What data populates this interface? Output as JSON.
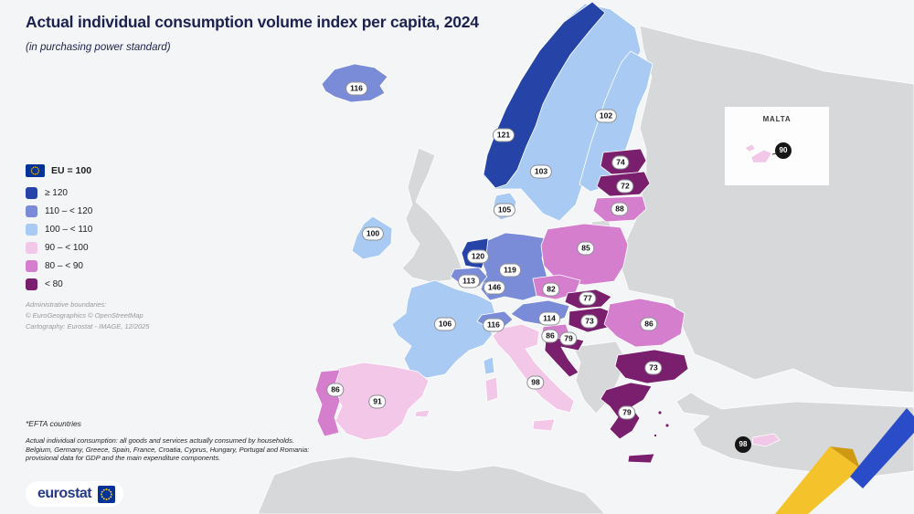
{
  "title": "Actual individual consumption volume index per capita, 2024",
  "subtitle": "(in purchasing power standard)",
  "legend": {
    "eu_label": "EU = 100",
    "classes": [
      {
        "label": "≥ 120",
        "color": "#2644A7"
      },
      {
        "label": "110 – < 120",
        "color": "#7A8CD8"
      },
      {
        "label": "100 – < 110",
        "color": "#A9CAF2"
      },
      {
        "label": "90 – < 100",
        "color": "#F2C7E7"
      },
      {
        "label": "80 – < 90",
        "color": "#D57ECE"
      },
      {
        "label": "< 80",
        "color": "#791F6D"
      }
    ],
    "admin_lines": [
      "Administrative boundaries:",
      "© EuroGeographics © OpenStreetMap",
      "Cartography: Eurostat - IMAGE, 12/2025"
    ]
  },
  "footnotes": [
    "*EFTA countries",
    "Actual individual consumption: all goods and services actually consumed by households.",
    "Belgium, Germany, Greece, Spain, France, Croatia, Cyprus, Hungary, Portugal and Romania:",
    "provisional data for GDP and the main expenditure components."
  ],
  "inset": {
    "label": "MALTA",
    "value": "90"
  },
  "logo": {
    "text": "eurostat"
  },
  "colors": {
    "sea": "#F4F5F6",
    "no_data_land": "#D7D8D9",
    "badge_dark": "#161616",
    "title_text": "#1C2150",
    "ribbon_yellow": "#F4C32B",
    "ribbon_blue": "#2A4CC9",
    "eu_flag_blue": "#003399",
    "eu_flag_stars": "#FFCC00"
  },
  "map": {
    "countries": [
      {
        "id": "norway",
        "name": "Norway",
        "value": 121,
        "band": 0,
        "badge": [
          551,
          148
        ]
      },
      {
        "id": "sweden",
        "name": "Sweden",
        "value": 103,
        "band": 2,
        "badge": [
          592,
          188
        ]
      },
      {
        "id": "finland",
        "name": "Finland",
        "value": 102,
        "band": 2,
        "badge": [
          663,
          127
        ]
      },
      {
        "id": "iceland",
        "name": "Iceland",
        "value": 116,
        "band": 1,
        "badge": [
          390,
          97
        ]
      },
      {
        "id": "denmark",
        "name": "Denmark",
        "value": 105,
        "band": 2,
        "badge": [
          552,
          230
        ]
      },
      {
        "id": "estonia",
        "name": "Estonia",
        "value": 74,
        "band": 5,
        "badge": [
          679,
          178
        ]
      },
      {
        "id": "latvia",
        "name": "Latvia",
        "value": 72,
        "band": 5,
        "badge": [
          684,
          204
        ]
      },
      {
        "id": "lithuania",
        "name": "Lithuania",
        "value": 88,
        "band": 4,
        "badge": [
          678,
          229
        ]
      },
      {
        "id": "ireland",
        "name": "Ireland",
        "value": 100,
        "band": 2,
        "badge": [
          408,
          256
        ]
      },
      {
        "id": "netherlands",
        "name": "Netherlands",
        "value": 120,
        "band": 0,
        "badge": [
          523,
          281
        ]
      },
      {
        "id": "belgium",
        "name": "Belgium",
        "value": 113,
        "band": 1,
        "badge": [
          513,
          308
        ]
      },
      {
        "id": "luxembourg",
        "name": "Luxembourg",
        "value": 146,
        "band": 0,
        "badge": [
          541,
          315
        ]
      },
      {
        "id": "germany",
        "name": "Germany",
        "value": 119,
        "band": 1,
        "badge": [
          558,
          296
        ]
      },
      {
        "id": "poland",
        "name": "Poland",
        "value": 85,
        "band": 4,
        "badge": [
          641,
          272
        ]
      },
      {
        "id": "czechia",
        "name": "Czechia",
        "value": 82,
        "band": 4,
        "badge": [
          603,
          317
        ]
      },
      {
        "id": "slovakia",
        "name": "Slovakia",
        "value": 77,
        "band": 5,
        "badge": [
          643,
          327
        ]
      },
      {
        "id": "austria",
        "name": "Austria",
        "value": 114,
        "band": 1,
        "badge": [
          601,
          349
        ]
      },
      {
        "id": "switzerland",
        "name": "Switzerland",
        "value": 116,
        "band": 1,
        "badge": [
          540,
          356
        ]
      },
      {
        "id": "hungary",
        "name": "Hungary",
        "value": 73,
        "band": 5,
        "badge": [
          645,
          352
        ]
      },
      {
        "id": "slovenia",
        "name": "Slovenia",
        "value": 86,
        "band": 4,
        "badge": [
          602,
          368
        ]
      },
      {
        "id": "croatia",
        "name": "Croatia",
        "value": 79,
        "band": 5,
        "badge": [
          622,
          371
        ]
      },
      {
        "id": "romania",
        "name": "Romania",
        "value": 86,
        "band": 4,
        "badge": [
          710,
          355
        ]
      },
      {
        "id": "bulgaria",
        "name": "Bulgaria",
        "value": 73,
        "band": 5,
        "badge": [
          715,
          403
        ]
      },
      {
        "id": "greece",
        "name": "Greece",
        "value": 79,
        "band": 5,
        "badge": [
          686,
          452
        ]
      },
      {
        "id": "italy",
        "name": "Italy",
        "value": 98,
        "band": 3,
        "badge": [
          586,
          419
        ]
      },
      {
        "id": "france",
        "name": "France",
        "value": 106,
        "band": 2,
        "badge": [
          487,
          355
        ]
      },
      {
        "id": "spain",
        "name": "Spain",
        "value": 91,
        "band": 3,
        "badge": [
          413,
          440
        ]
      },
      {
        "id": "portugal",
        "name": "Portugal",
        "value": 86,
        "band": 4,
        "badge": [
          367,
          427
        ]
      },
      {
        "id": "cyprus",
        "name": "Cyprus",
        "value": 98,
        "band": 3,
        "badge": [
          813,
          487
        ],
        "dark": true
      },
      {
        "id": "malta",
        "name": "Malta",
        "value": 90,
        "band": 3
      }
    ]
  }
}
